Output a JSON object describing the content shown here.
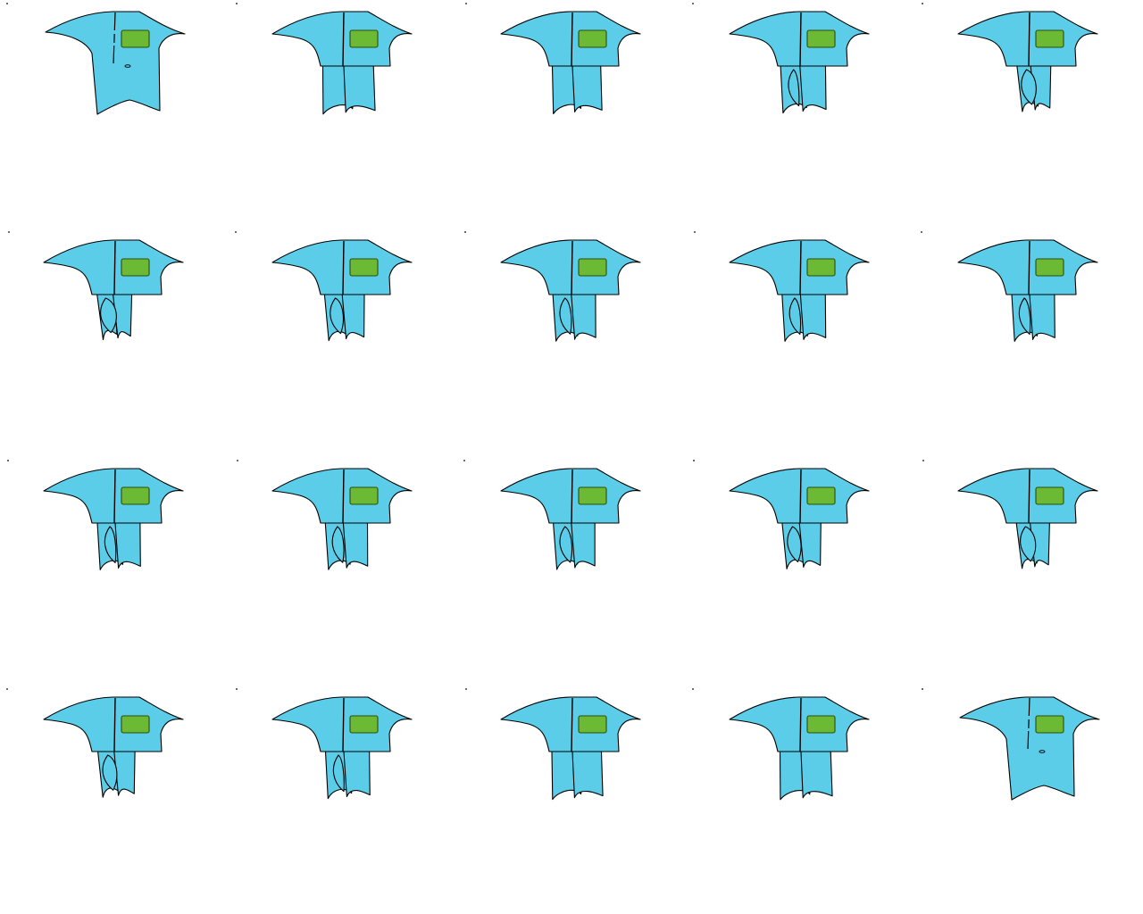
{
  "colors": {
    "background": "#ffffff",
    "garment_fill": "#5ccde8",
    "garment_outline": "#000000",
    "pocket_fill": "#6cb933",
    "pocket_outline": "#2c4a10"
  },
  "grid": {
    "rows": 4,
    "columns": 5
  },
  "frames": [
    {
      "stage": "flat",
      "fold": 0.0,
      "drift": 0.0
    },
    {
      "stage": "cut",
      "fold": 0.05,
      "drift": 0.0
    },
    {
      "stage": "cut",
      "fold": 0.15,
      "drift": 0.0
    },
    {
      "stage": "cut",
      "fold": 0.35,
      "drift": -0.2
    },
    {
      "stage": "cut",
      "fold": 0.75,
      "drift": 0.2
    },
    {
      "stage": "cut",
      "fold": 0.85,
      "drift": -0.4
    },
    {
      "stage": "cut",
      "fold": 0.6,
      "drift": -0.3
    },
    {
      "stage": "cut",
      "fold": 0.45,
      "drift": -0.2
    },
    {
      "stage": "cut",
      "fold": 0.4,
      "drift": -0.1
    },
    {
      "stage": "cut",
      "fold": 0.4,
      "drift": 0.0
    },
    {
      "stage": "cut",
      "fold": 0.4,
      "drift": 0.0
    },
    {
      "stage": "cut",
      "fold": 0.45,
      "drift": -0.1
    },
    {
      "stage": "cut",
      "fold": 0.5,
      "drift": -0.2
    },
    {
      "stage": "cut",
      "fold": 0.65,
      "drift": -0.3
    },
    {
      "stage": "cut",
      "fold": 0.8,
      "drift": 0.1
    },
    {
      "stage": "cut",
      "fold": 0.7,
      "drift": -0.2
    },
    {
      "stage": "cut",
      "fold": 0.35,
      "drift": 0.0
    },
    {
      "stage": "cut",
      "fold": 0.1,
      "drift": 0.0
    },
    {
      "stage": "cut",
      "fold": 0.05,
      "drift": 0.0
    },
    {
      "stage": "flat",
      "fold": 0.0,
      "drift": 0.0
    }
  ]
}
